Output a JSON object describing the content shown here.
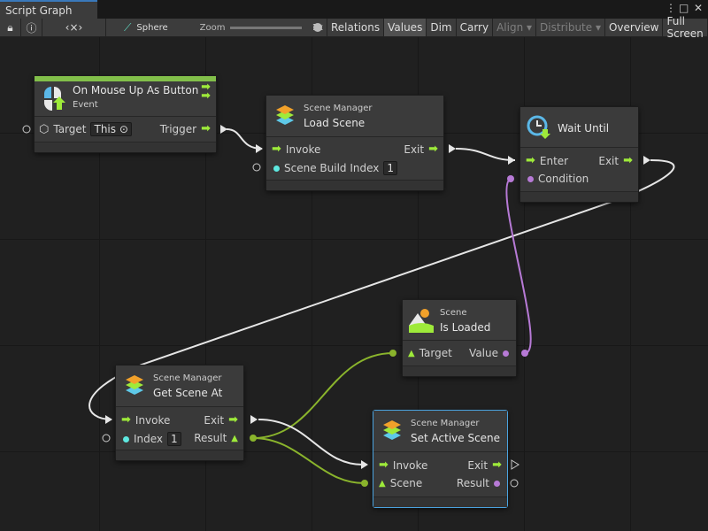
{
  "window": {
    "tab_title": "Script Graph"
  },
  "toolbar": {
    "target_object": "Sphere",
    "zoom_label": "Zoom",
    "zoom_value": "1x",
    "zoom_fraction": 1.0,
    "buttons": [
      "Relations",
      "Values",
      "Dim",
      "Carry",
      "Align ▾",
      "Distribute ▾",
      "Overview",
      "Full Screen"
    ]
  },
  "nodes": {
    "mouse_up": {
      "title": "On Mouse Up As Button",
      "subtitle": "Event",
      "target_label": "Target",
      "target_value": "This",
      "trigger_label": "Trigger"
    },
    "load_scene": {
      "category": "Scene Manager",
      "title": "Load Scene",
      "invoke": "Invoke",
      "exit": "Exit",
      "index_label": "Scene Build Index",
      "index_value": "1"
    },
    "wait_until": {
      "title": "Wait Until",
      "enter": "Enter",
      "exit": "Exit",
      "condition": "Condition"
    },
    "is_loaded": {
      "category": "Scene",
      "title": "Is Loaded",
      "target": "Target",
      "value": "Value"
    },
    "get_scene_at": {
      "category": "Scene Manager",
      "title": "Get Scene At",
      "invoke": "Invoke",
      "exit": "Exit",
      "index_label": "Index",
      "index_value": "1",
      "result": "Result"
    },
    "set_active": {
      "category": "Scene Manager",
      "title": "Set Active Scene",
      "invoke": "Invoke",
      "exit": "Exit",
      "scene": "Scene",
      "result": "Result"
    }
  },
  "colors": {
    "control_flow": "#9eea3a",
    "scene_value": "#8ab42c",
    "bool_value": "#b77ad6",
    "selection": "#4aa3df",
    "event_bar": "#82bf4a"
  }
}
